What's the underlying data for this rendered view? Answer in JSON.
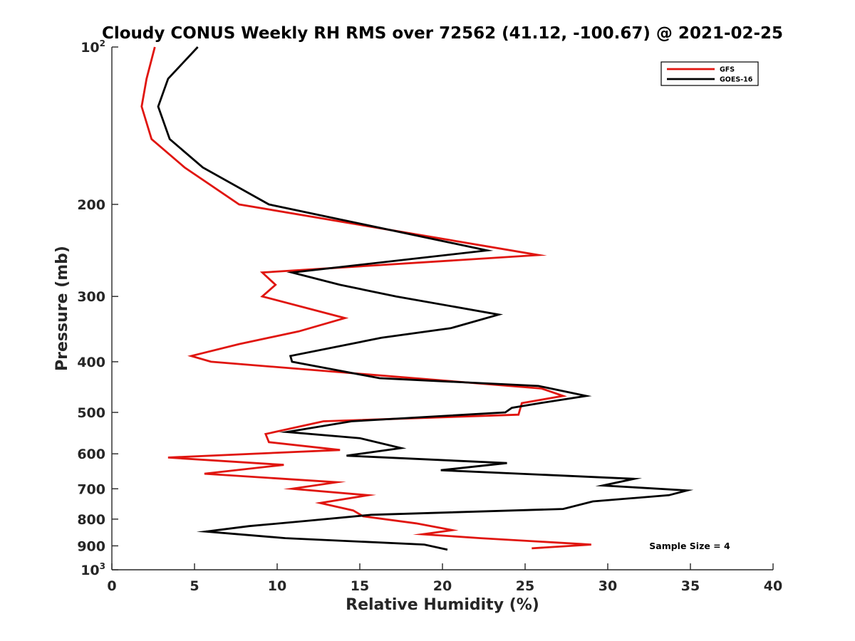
{
  "chart_data": {
    "type": "line",
    "title": "Cloudy CONUS Weekly RH RMS over 72562 (41.12, -100.67) @ 2021-02-25",
    "xlabel": "Relative Humidity (%)",
    "ylabel": "Pressure (mb)",
    "xlim": [
      0,
      40
    ],
    "ylim": [
      100,
      1000
    ],
    "y_scale": "log",
    "y_reversed": true,
    "x_ticks": [
      "0",
      "5",
      "10",
      "15",
      "20",
      "25",
      "30",
      "35",
      "40"
    ],
    "y_ticks": [
      {
        "value": 100,
        "base": "10",
        "exp": "2"
      },
      {
        "value": 200,
        "label": "200"
      },
      {
        "value": 300,
        "label": "300"
      },
      {
        "value": 400,
        "label": "400"
      },
      {
        "value": 500,
        "label": "500"
      },
      {
        "value": 600,
        "label": "600"
      },
      {
        "value": 700,
        "label": "700"
      },
      {
        "value": 800,
        "label": "800"
      },
      {
        "value": 900,
        "label": "900"
      },
      {
        "value": 1000,
        "base": "10",
        "exp": "3"
      }
    ],
    "grid": false,
    "legend_position": "top-right",
    "annotation": "Sample Size = 4",
    "series": [
      {
        "name": "GFS",
        "color": "#e0150f",
        "points": [
          [
            2.6,
            100
          ],
          [
            2.1,
            115
          ],
          [
            1.8,
            130
          ],
          [
            2.4,
            150
          ],
          [
            4.4,
            170
          ],
          [
            7.7,
            200
          ],
          [
            25.8,
            250
          ],
          [
            9.1,
            270
          ],
          [
            9.9,
            285
          ],
          [
            9.1,
            300
          ],
          [
            14.1,
            330
          ],
          [
            11.3,
            350
          ],
          [
            7.7,
            370
          ],
          [
            4.8,
            390
          ],
          [
            6.0,
            400
          ],
          [
            26.0,
            450
          ],
          [
            27.3,
            465
          ],
          [
            24.8,
            480
          ],
          [
            24.6,
            505
          ],
          [
            12.8,
            520
          ],
          [
            9.3,
            550
          ],
          [
            9.5,
            570
          ],
          [
            13.8,
            590
          ],
          [
            3.4,
            610
          ],
          [
            10.4,
            630
          ],
          [
            5.6,
            655
          ],
          [
            13.6,
            680
          ],
          [
            10.9,
            700
          ],
          [
            15.5,
            720
          ],
          [
            12.6,
            745
          ],
          [
            14.6,
            770
          ],
          [
            15.2,
            790
          ],
          [
            18.4,
            815
          ],
          [
            20.6,
            840
          ],
          [
            18.8,
            855
          ],
          [
            22.3,
            870
          ],
          [
            29.0,
            895
          ],
          [
            25.4,
            910
          ]
        ]
      },
      {
        "name": "GOES-16",
        "color": "#000000",
        "points": [
          [
            5.2,
            100
          ],
          [
            3.4,
            115
          ],
          [
            2.8,
            130
          ],
          [
            3.5,
            150
          ],
          [
            5.5,
            170
          ],
          [
            9.5,
            200
          ],
          [
            22.7,
            245
          ],
          [
            10.9,
            270
          ],
          [
            13.8,
            285
          ],
          [
            17.2,
            300
          ],
          [
            23.4,
            325
          ],
          [
            20.5,
            345
          ],
          [
            16.3,
            360
          ],
          [
            10.8,
            390
          ],
          [
            10.9,
            400
          ],
          [
            16.2,
            430
          ],
          [
            25.8,
            445
          ],
          [
            28.7,
            465
          ],
          [
            25.9,
            480
          ],
          [
            24.2,
            490
          ],
          [
            23.8,
            500
          ],
          [
            14.5,
            520
          ],
          [
            10.6,
            545
          ],
          [
            15.0,
            560
          ],
          [
            17.5,
            585
          ],
          [
            14.2,
            605
          ],
          [
            23.9,
            625
          ],
          [
            19.9,
            645
          ],
          [
            31.6,
            670
          ],
          [
            29.7,
            690
          ],
          [
            34.8,
            705
          ],
          [
            33.7,
            720
          ],
          [
            29.1,
            740
          ],
          [
            27.3,
            765
          ],
          [
            15.7,
            785
          ],
          [
            12.0,
            805
          ],
          [
            8.3,
            825
          ],
          [
            5.7,
            845
          ],
          [
            10.5,
            870
          ],
          [
            18.9,
            895
          ],
          [
            20.3,
            915
          ]
        ]
      }
    ]
  }
}
